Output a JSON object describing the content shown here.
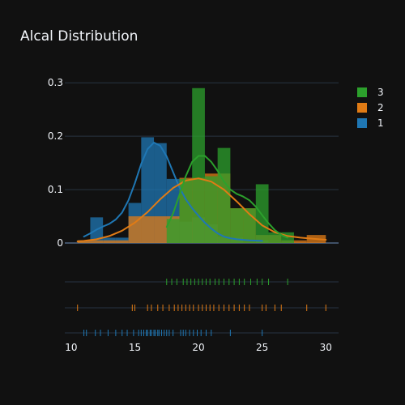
{
  "chart_data": {
    "type": "histogram",
    "title": "Alcal Distribution",
    "xlabel": "",
    "ylabel": "",
    "xlim": [
      9.5,
      31
    ],
    "ylim": [
      0,
      0.32
    ],
    "x_ticks": [
      10,
      15,
      20,
      25,
      30
    ],
    "y_ticks": [
      0,
      0.1,
      0.2,
      0.3
    ],
    "y_tick_labels": [
      "0",
      "0.1",
      "0.2",
      "0.3"
    ],
    "grid": true,
    "legend_position": "top-right",
    "legend_order": [
      "3",
      "2",
      "1"
    ],
    "series": [
      {
        "name": "3",
        "color": "#2ca02c",
        "bins": [
          {
            "x0": 17.5,
            "x1": 18.5,
            "y": 0.045
          },
          {
            "x0": 18.5,
            "x1": 19.5,
            "y": 0.12
          },
          {
            "x0": 19.5,
            "x1": 20.5,
            "y": 0.29
          },
          {
            "x0": 20.5,
            "x1": 21.5,
            "y": 0.125
          },
          {
            "x0": 21.5,
            "x1": 22.5,
            "y": 0.178
          },
          {
            "x0": 22.5,
            "x1": 23.5,
            "y": 0.065
          },
          {
            "x0": 23.5,
            "x1": 24.5,
            "y": 0.065
          },
          {
            "x0": 24.5,
            "x1": 25.5,
            "y": 0.11
          },
          {
            "x0": 25.5,
            "x1": 26.5,
            "y": 0.02
          },
          {
            "x0": 26.5,
            "x1": 27.5,
            "y": 0.02
          }
        ],
        "kde_x": [
          17.5,
          18.0,
          18.5,
          19.0,
          19.5,
          20.0,
          20.5,
          21.0,
          21.5,
          22.0,
          22.5,
          23.0,
          23.5,
          24.0,
          24.5,
          25.0,
          25.5,
          26.0,
          26.5,
          27.0
        ],
        "kde_y": [
          0.03,
          0.055,
          0.09,
          0.125,
          0.152,
          0.163,
          0.163,
          0.152,
          0.135,
          0.115,
          0.1,
          0.092,
          0.087,
          0.08,
          0.068,
          0.052,
          0.037,
          0.024,
          0.015,
          0.01
        ],
        "rug": [
          17.5,
          17.9,
          18.3,
          18.8,
          19.1,
          19.4,
          19.7,
          20.0,
          20.3,
          20.6,
          20.9,
          21.3,
          21.6,
          22.0,
          22.4,
          22.8,
          23.2,
          23.6,
          24.1,
          24.6,
          25.0,
          25.5,
          27.0
        ]
      },
      {
        "name": "2",
        "color": "#e07b15",
        "bins": [
          {
            "x0": 10.5,
            "x1": 12.5,
            "y": 0.005
          },
          {
            "x0": 12.5,
            "x1": 14.5,
            "y": 0.005
          },
          {
            "x0": 14.5,
            "x1": 16.5,
            "y": 0.05
          },
          {
            "x0": 16.5,
            "x1": 18.5,
            "y": 0.05
          },
          {
            "x0": 18.5,
            "x1": 20.5,
            "y": 0.122
          },
          {
            "x0": 20.5,
            "x1": 22.5,
            "y": 0.13
          },
          {
            "x0": 22.5,
            "x1": 24.5,
            "y": 0.065
          },
          {
            "x0": 24.5,
            "x1": 26.5,
            "y": 0.015
          },
          {
            "x0": 26.5,
            "x1": 28.5,
            "y": 0.005
          },
          {
            "x0": 28.5,
            "x1": 30.0,
            "y": 0.015
          }
        ],
        "kde_x": [
          10.5,
          11,
          12,
          13,
          14,
          15,
          16,
          17,
          18,
          19,
          20,
          21,
          22,
          23,
          24,
          25,
          26,
          27,
          28,
          29,
          30
        ],
        "kde_y": [
          0.003,
          0.004,
          0.007,
          0.013,
          0.023,
          0.038,
          0.058,
          0.082,
          0.103,
          0.117,
          0.121,
          0.115,
          0.1,
          0.078,
          0.054,
          0.033,
          0.02,
          0.013,
          0.01,
          0.008,
          0.006
        ],
        "rug": [
          10.5,
          14.8,
          15.0,
          16.0,
          16.3,
          16.8,
          17.2,
          17.7,
          18.1,
          18.4,
          18.7,
          19.0,
          19.3,
          19.6,
          20.0,
          20.3,
          20.6,
          20.9,
          21.2,
          21.6,
          22.0,
          22.4,
          22.8,
          23.2,
          23.6,
          24.0,
          25.0,
          25.3,
          26.0,
          26.5,
          28.5,
          30.0
        ]
      },
      {
        "name": "1",
        "color": "#1f77b4",
        "bins": [
          {
            "x0": 10.5,
            "x1": 11.5,
            "y": 0.005
          },
          {
            "x0": 11.5,
            "x1": 12.5,
            "y": 0.048
          },
          {
            "x0": 12.5,
            "x1": 13.5,
            "y": 0.01
          },
          {
            "x0": 13.5,
            "x1": 14.5,
            "y": 0.01
          },
          {
            "x0": 14.5,
            "x1": 15.5,
            "y": 0.075
          },
          {
            "x0": 15.5,
            "x1": 16.5,
            "y": 0.198
          },
          {
            "x0": 16.5,
            "x1": 17.5,
            "y": 0.187
          },
          {
            "x0": 17.5,
            "x1": 18.5,
            "y": 0.12
          },
          {
            "x0": 18.5,
            "x1": 19.5,
            "y": 0.04
          },
          {
            "x0": 19.5,
            "x1": 20.5,
            "y": 0.048
          },
          {
            "x0": 20.5,
            "x1": 21.5,
            "y": 0.035
          },
          {
            "x0": 21.5,
            "x1": 22.5,
            "y": 0.012
          },
          {
            "x0": 22.5,
            "x1": 23.5,
            "y": 0.01
          },
          {
            "x0": 24.5,
            "x1": 25.5,
            "y": 0.005
          }
        ],
        "kde_x": [
          11,
          11.5,
          12,
          12.5,
          13,
          13.5,
          14,
          14.5,
          15,
          15.5,
          16,
          16.5,
          17,
          17.5,
          18,
          18.5,
          19,
          19.5,
          20,
          20.5,
          21,
          21.5,
          22,
          22.5,
          23,
          24,
          25
        ],
        "kde_y": [
          0.012,
          0.018,
          0.025,
          0.031,
          0.036,
          0.044,
          0.057,
          0.08,
          0.112,
          0.148,
          0.176,
          0.188,
          0.182,
          0.162,
          0.133,
          0.104,
          0.082,
          0.065,
          0.051,
          0.038,
          0.027,
          0.018,
          0.012,
          0.009,
          0.007,
          0.005,
          0.004
        ],
        "rug": [
          11.0,
          11.2,
          11.9,
          12.3,
          12.9,
          13.5,
          14.0,
          14.4,
          14.9,
          15.3,
          15.5,
          15.7,
          15.9,
          16.0,
          16.2,
          16.3,
          16.5,
          16.6,
          16.8,
          16.9,
          17.1,
          17.3,
          17.5,
          17.7,
          18.0,
          18.6,
          18.8,
          19.0,
          19.3,
          19.6,
          19.9,
          20.2,
          20.6,
          21.0,
          22.5,
          25.0
        ]
      }
    ]
  }
}
